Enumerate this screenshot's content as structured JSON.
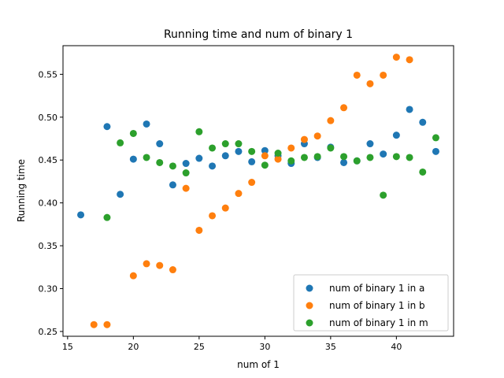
{
  "chart_data": {
    "type": "scatter",
    "title": "Running time and num of binary 1",
    "xlabel": "num of 1",
    "ylabel": "Running time",
    "xlim": [
      14.65,
      44.35
    ],
    "ylim": [
      0.2444,
      0.5834
    ],
    "xticks": [
      15,
      20,
      25,
      30,
      35,
      40
    ],
    "yticks": [
      0.25,
      0.3,
      0.35,
      0.4,
      0.45,
      0.5,
      0.55
    ],
    "xtick_labels": [
      "15",
      "20",
      "25",
      "30",
      "35",
      "40"
    ],
    "ytick_labels": [
      "0.25",
      "0.30",
      "0.35",
      "0.40",
      "0.45",
      "0.50",
      "0.55"
    ],
    "grid": false,
    "legend_position": "lower-right",
    "series": [
      {
        "name": "num of binary 1 in a",
        "color": "#1f77b4",
        "points": [
          [
            16,
            0.386
          ],
          [
            18,
            0.489
          ],
          [
            19,
            0.41
          ],
          [
            20,
            0.451
          ],
          [
            21,
            0.492
          ],
          [
            22,
            0.469
          ],
          [
            23,
            0.421
          ],
          [
            24,
            0.446
          ],
          [
            25,
            0.452
          ],
          [
            26,
            0.443
          ],
          [
            27,
            0.455
          ],
          [
            28,
            0.46
          ],
          [
            29,
            0.448
          ],
          [
            30,
            0.461
          ],
          [
            31,
            0.455
          ],
          [
            32,
            0.446
          ],
          [
            33,
            0.469
          ],
          [
            34,
            0.453
          ],
          [
            35,
            0.465
          ],
          [
            36,
            0.447
          ],
          [
            37,
            0.449
          ],
          [
            38,
            0.469
          ],
          [
            39,
            0.457
          ],
          [
            40,
            0.479
          ],
          [
            41,
            0.509
          ],
          [
            42,
            0.494
          ],
          [
            43,
            0.46
          ]
        ]
      },
      {
        "name": "num of binary 1 in b",
        "color": "#ff7f0e",
        "points": [
          [
            17,
            0.258
          ],
          [
            18,
            0.258
          ],
          [
            20,
            0.315
          ],
          [
            21,
            0.329
          ],
          [
            22,
            0.327
          ],
          [
            23,
            0.322
          ],
          [
            24,
            0.417
          ],
          [
            25,
            0.368
          ],
          [
            26,
            0.385
          ],
          [
            27,
            0.394
          ],
          [
            28,
            0.411
          ],
          [
            29,
            0.424
          ],
          [
            30,
            0.455
          ],
          [
            31,
            0.451
          ],
          [
            32,
            0.464
          ],
          [
            33,
            0.474
          ],
          [
            34,
            0.478
          ],
          [
            35,
            0.496
          ],
          [
            36,
            0.511
          ],
          [
            37,
            0.549
          ],
          [
            38,
            0.539
          ],
          [
            39,
            0.549
          ],
          [
            40,
            0.57
          ],
          [
            41,
            0.567
          ]
        ]
      },
      {
        "name": "num of binary 1 in m",
        "color": "#2ca02c",
        "points": [
          [
            18,
            0.383
          ],
          [
            19,
            0.47
          ],
          [
            20,
            0.481
          ],
          [
            21,
            0.453
          ],
          [
            22,
            0.447
          ],
          [
            23,
            0.443
          ],
          [
            24,
            0.435
          ],
          [
            25,
            0.483
          ],
          [
            26,
            0.464
          ],
          [
            27,
            0.469
          ],
          [
            28,
            0.469
          ],
          [
            29,
            0.46
          ],
          [
            30,
            0.444
          ],
          [
            31,
            0.458
          ],
          [
            32,
            0.449
          ],
          [
            33,
            0.453
          ],
          [
            34,
            0.454
          ],
          [
            35,
            0.464
          ],
          [
            36,
            0.454
          ],
          [
            37,
            0.449
          ],
          [
            38,
            0.453
          ],
          [
            39,
            0.409
          ],
          [
            40,
            0.454
          ],
          [
            41,
            0.453
          ],
          [
            42,
            0.436
          ],
          [
            43,
            0.476
          ]
        ]
      }
    ]
  }
}
